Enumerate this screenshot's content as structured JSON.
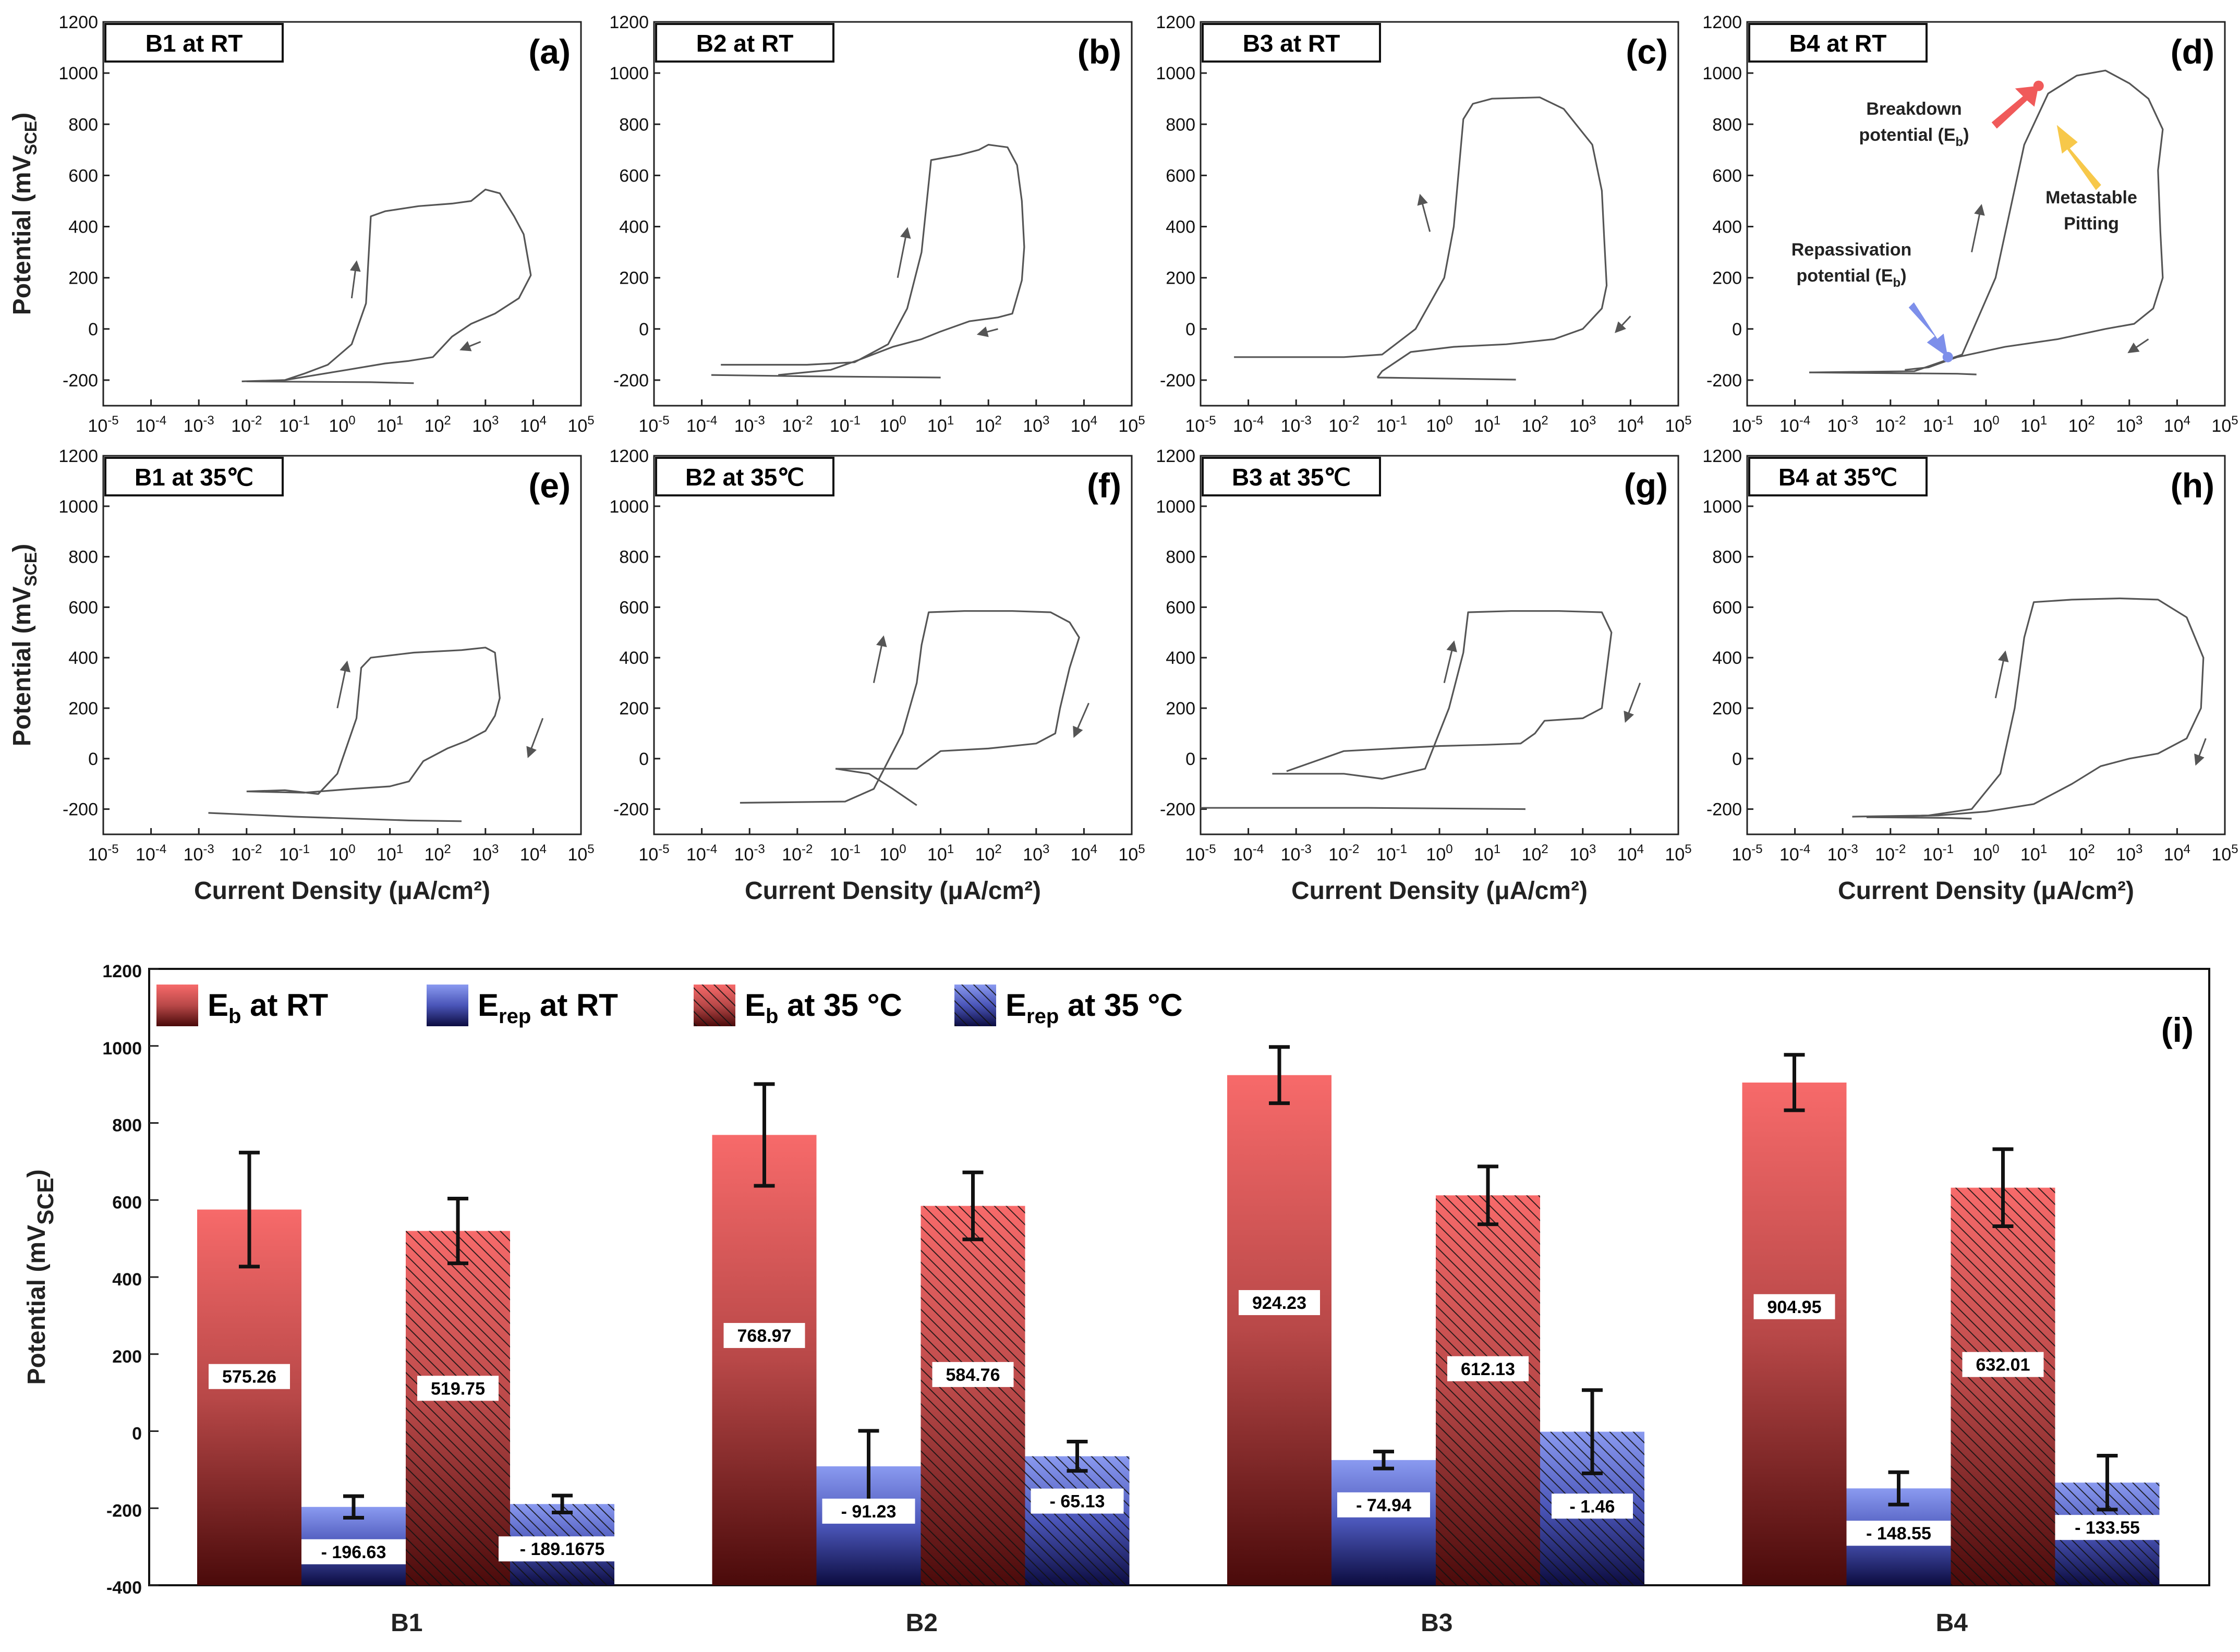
{
  "chart_data": [
    {
      "type": "line",
      "panel": "(a)",
      "title": "B1 at RT",
      "xscale": "log",
      "xlim_exp": [
        -5,
        5
      ],
      "ylim": [
        -300,
        1200
      ],
      "yticks": [
        -200,
        0,
        200,
        400,
        600,
        800,
        1000,
        1200
      ],
      "ylabel": "Potential (mV",
      "ylabel_sub": "SCE",
      "ylabel_close": ")",
      "xlabel": "",
      "forward": [
        [
          -2.1,
          -205
        ],
        [
          -1.2,
          -200
        ],
        [
          -0.8,
          -175
        ],
        [
          -0.3,
          -140
        ],
        [
          0.2,
          -60
        ],
        [
          0.5,
          100
        ],
        [
          0.6,
          440
        ],
        [
          0.9,
          460
        ],
        [
          1.6,
          480
        ],
        [
          2.3,
          490
        ],
        [
          2.7,
          500
        ],
        [
          3.0,
          545
        ],
        [
          3.3,
          530
        ],
        [
          3.6,
          440
        ],
        [
          3.8,
          370
        ],
        [
          3.95,
          210
        ],
        [
          3.7,
          120
        ],
        [
          3.2,
          60
        ],
        [
          2.7,
          20
        ],
        [
          2.3,
          -30
        ],
        [
          1.9,
          -110
        ],
        [
          1.4,
          -125
        ],
        [
          0.9,
          -135
        ],
        [
          0.1,
          -160
        ],
        [
          -1.2,
          -200
        ],
        [
          -2.0,
          -205
        ]
      ],
      "tail": [
        [
          -2.0,
          -205
        ],
        [
          0.6,
          -208
        ],
        [
          1.5,
          -212
        ]
      ],
      "arrows": [
        [
          0.2,
          120,
          0.3,
          260
        ],
        [
          2.9,
          -50,
          2.5,
          -80
        ]
      ]
    },
    {
      "type": "line",
      "panel": "(b)",
      "title": "B2 at RT",
      "xscale": "log",
      "xlim_exp": [
        -5,
        5
      ],
      "ylim": [
        -300,
        1200
      ],
      "yticks": [
        -200,
        0,
        200,
        400,
        600,
        800,
        1000,
        1200
      ],
      "xlabel": "",
      "forward": [
        [
          -3.6,
          -140
        ],
        [
          -1.8,
          -140
        ],
        [
          -0.8,
          -130
        ],
        [
          -0.1,
          -60
        ],
        [
          0.3,
          80
        ],
        [
          0.6,
          300
        ],
        [
          0.8,
          660
        ],
        [
          1.4,
          680
        ],
        [
          1.8,
          700
        ],
        [
          2.0,
          720
        ],
        [
          2.4,
          710
        ],
        [
          2.6,
          640
        ],
        [
          2.7,
          500
        ],
        [
          2.75,
          320
        ],
        [
          2.7,
          190
        ],
        [
          2.5,
          60
        ],
        [
          2.2,
          45
        ],
        [
          1.6,
          30
        ],
        [
          1.0,
          -10
        ],
        [
          0.6,
          -40
        ],
        [
          0.0,
          -70
        ],
        [
          -0.7,
          -120
        ],
        [
          -1.3,
          -160
        ],
        [
          -2.4,
          -180
        ]
      ],
      "tail": [
        [
          -3.8,
          -180
        ],
        [
          -1.8,
          -185
        ],
        [
          1.0,
          -190
        ]
      ],
      "arrows": [
        [
          0.1,
          200,
          0.3,
          390
        ],
        [
          2.2,
          0,
          1.8,
          -20
        ]
      ]
    },
    {
      "type": "line",
      "panel": "(c)",
      "title": "B3 at RT",
      "xscale": "log",
      "xlim_exp": [
        -5,
        5
      ],
      "ylim": [
        -300,
        1200
      ],
      "yticks": [
        -200,
        0,
        200,
        400,
        600,
        800,
        1000,
        1200
      ],
      "xlabel": "",
      "forward": [
        [
          -4.3,
          -110
        ],
        [
          -2.0,
          -110
        ],
        [
          -1.2,
          -100
        ],
        [
          -0.5,
          0
        ],
        [
          0.1,
          200
        ],
        [
          0.3,
          400
        ],
        [
          0.5,
          820
        ],
        [
          0.7,
          880
        ],
        [
          1.1,
          900
        ],
        [
          2.1,
          905
        ],
        [
          2.6,
          860
        ],
        [
          3.2,
          720
        ],
        [
          3.4,
          540
        ],
        [
          3.45,
          350
        ],
        [
          3.5,
          170
        ],
        [
          3.4,
          80
        ],
        [
          3.0,
          0
        ],
        [
          2.4,
          -40
        ],
        [
          1.4,
          -60
        ],
        [
          0.3,
          -70
        ],
        [
          -0.6,
          -90
        ],
        [
          -1.2,
          -165
        ],
        [
          -1.3,
          -190
        ]
      ],
      "tail": [
        [
          -1.3,
          -190
        ],
        [
          0.5,
          -195
        ],
        [
          1.6,
          -198
        ]
      ],
      "arrows": [
        [
          -0.2,
          380,
          -0.4,
          520
        ],
        [
          4.0,
          50,
          3.7,
          -10
        ]
      ]
    },
    {
      "type": "line",
      "panel": "(d)",
      "title": "B4 at RT",
      "xscale": "log",
      "xlim_exp": [
        -5,
        5
      ],
      "ylim": [
        -300,
        1200
      ],
      "yticks": [
        -200,
        0,
        200,
        400,
        600,
        800,
        1000,
        1200
      ],
      "xlabel": "",
      "forward": [
        [
          -3.7,
          -170
        ],
        [
          -1.5,
          -165
        ],
        [
          -0.8,
          -120
        ],
        [
          -0.5,
          -100
        ],
        [
          0.2,
          200
        ],
        [
          0.8,
          720
        ],
        [
          1.3,
          920
        ],
        [
          1.9,
          990
        ],
        [
          2.5,
          1010
        ],
        [
          3.0,
          960
        ],
        [
          3.4,
          900
        ],
        [
          3.7,
          780
        ],
        [
          3.6,
          620
        ],
        [
          3.65,
          380
        ],
        [
          3.7,
          200
        ],
        [
          3.5,
          80
        ],
        [
          3.1,
          20
        ],
        [
          2.5,
          0
        ],
        [
          1.5,
          -40
        ],
        [
          0.4,
          -70
        ],
        [
          -0.6,
          -110
        ],
        [
          -1.2,
          -150
        ],
        [
          -1.7,
          -160
        ]
      ],
      "tail": [
        [
          -3.7,
          -170
        ],
        [
          -0.6,
          -175
        ],
        [
          -0.2,
          -178
        ]
      ],
      "arrows": [
        [
          -0.3,
          300,
          -0.1,
          480
        ],
        [
          3.4,
          -40,
          3.0,
          -90
        ]
      ],
      "annotations": [
        {
          "text": "Breakdown",
          "sub_prefix": "potential (E",
          "sub": "b",
          "sub_suffix": ")"
        },
        {
          "text": "Metastable",
          "line2": "Pitting"
        },
        {
          "text": "Repassivation",
          "sub_prefix": "potential (E",
          "sub": "b",
          "sub_suffix": ")"
        }
      ],
      "markers": [
        {
          "name": "breakdown-point",
          "x": 1.1,
          "y": 950,
          "color": "#f05a5a"
        },
        {
          "name": "repassivation-point",
          "x": -0.8,
          "y": -110,
          "color": "#7d8fea"
        }
      ]
    },
    {
      "type": "line",
      "panel": "(e)",
      "title": "B1 at 35℃",
      "xscale": "log",
      "xlim_exp": [
        -5,
        5
      ],
      "ylim": [
        -300,
        1200
      ],
      "yticks": [
        -200,
        0,
        200,
        400,
        600,
        800,
        1000,
        1200
      ],
      "xlabel": "Current Density (μA/cm²)",
      "forward": [
        [
          -2.0,
          -130
        ],
        [
          -1.2,
          -125
        ],
        [
          -0.5,
          -140
        ],
        [
          -0.1,
          -60
        ],
        [
          0.3,
          160
        ],
        [
          0.4,
          360
        ],
        [
          0.6,
          400
        ],
        [
          1.5,
          420
        ],
        [
          2.5,
          430
        ],
        [
          3.0,
          440
        ],
        [
          3.2,
          420
        ],
        [
          3.3,
          240
        ],
        [
          3.2,
          170
        ],
        [
          3.0,
          110
        ],
        [
          2.6,
          70
        ],
        [
          2.2,
          40
        ],
        [
          1.7,
          -10
        ],
        [
          1.4,
          -90
        ],
        [
          1.0,
          -110
        ],
        [
          0.2,
          -120
        ],
        [
          -0.8,
          -135
        ],
        [
          -2.0,
          -130
        ]
      ],
      "tail": [
        [
          -2.8,
          -215
        ],
        [
          -1.0,
          -230
        ],
        [
          1.4,
          -245
        ],
        [
          2.5,
          -248
        ]
      ],
      "arrows": [
        [
          -0.1,
          200,
          0.1,
          380
        ],
        [
          4.2,
          160,
          3.9,
          10
        ]
      ]
    },
    {
      "type": "line",
      "panel": "(f)",
      "title": "B2 at 35℃",
      "xscale": "log",
      "xlim_exp": [
        -5,
        5
      ],
      "ylim": [
        -300,
        1200
      ],
      "yticks": [
        -200,
        0,
        200,
        400,
        600,
        800,
        1000,
        1200
      ],
      "xlabel": "Current Density (μA/cm²)",
      "forward": [
        [
          -3.2,
          -175
        ],
        [
          -1.0,
          -170
        ],
        [
          -0.4,
          -120
        ],
        [
          0.2,
          100
        ],
        [
          0.5,
          300
        ],
        [
          0.6,
          450
        ],
        [
          0.75,
          580
        ],
        [
          1.5,
          585
        ],
        [
          2.5,
          585
        ],
        [
          3.3,
          580
        ],
        [
          3.7,
          540
        ],
        [
          3.9,
          480
        ],
        [
          3.7,
          360
        ],
        [
          3.5,
          200
        ],
        [
          3.4,
          100
        ],
        [
          3.0,
          60
        ],
        [
          2.0,
          40
        ],
        [
          1.0,
          30
        ],
        [
          0.5,
          -40
        ],
        [
          -1.2,
          -40
        ]
      ],
      "tail": [
        [
          -1.2,
          -40
        ],
        [
          -0.5,
          -60
        ],
        [
          0.0,
          -120
        ],
        [
          0.5,
          -185
        ]
      ],
      "arrows": [
        [
          -0.4,
          300,
          -0.2,
          480
        ],
        [
          4.1,
          220,
          3.8,
          90
        ]
      ]
    },
    {
      "type": "line",
      "panel": "(g)",
      "title": "B3 at 35℃",
      "xscale": "log",
      "xlim_exp": [
        -5,
        5
      ],
      "ylim": [
        -300,
        1200
      ],
      "yticks": [
        -200,
        0,
        200,
        400,
        600,
        800,
        1000,
        1200
      ],
      "xlabel": "Current Density (μA/cm²)",
      "forward": [
        [
          -3.5,
          -60
        ],
        [
          -2.0,
          -60
        ],
        [
          -1.2,
          -80
        ],
        [
          -0.3,
          -40
        ],
        [
          0.2,
          200
        ],
        [
          0.5,
          420
        ],
        [
          0.6,
          580
        ],
        [
          1.5,
          585
        ],
        [
          2.5,
          585
        ],
        [
          3.4,
          580
        ],
        [
          3.6,
          500
        ],
        [
          3.5,
          350
        ],
        [
          3.4,
          200
        ],
        [
          3.0,
          160
        ],
        [
          2.2,
          150
        ],
        [
          2.0,
          100
        ],
        [
          1.7,
          60
        ],
        [
          1.0,
          55
        ],
        [
          0.0,
          50
        ],
        [
          -1.0,
          40
        ],
        [
          -2.0,
          30
        ],
        [
          -3.2,
          -50
        ]
      ],
      "tail": [
        [
          -5.0,
          -195
        ],
        [
          -1.5,
          -195
        ],
        [
          1.8,
          -200
        ]
      ],
      "arrows": [
        [
          0.1,
          300,
          0.3,
          460
        ],
        [
          4.2,
          300,
          3.9,
          150
        ]
      ]
    },
    {
      "type": "line",
      "panel": "(h)",
      "title": "B4 at 35℃",
      "xscale": "log",
      "xlim_exp": [
        -5,
        5
      ],
      "ylim": [
        -300,
        1200
      ],
      "yticks": [
        -200,
        0,
        200,
        400,
        600,
        800,
        1000,
        1200
      ],
      "xlabel": "Current Density (μA/cm²)",
      "forward": [
        [
          -2.8,
          -230
        ],
        [
          -1.2,
          -225
        ],
        [
          -0.3,
          -200
        ],
        [
          0.3,
          -60
        ],
        [
          0.6,
          200
        ],
        [
          0.8,
          480
        ],
        [
          1.0,
          620
        ],
        [
          1.8,
          630
        ],
        [
          2.8,
          635
        ],
        [
          3.6,
          630
        ],
        [
          4.2,
          560
        ],
        [
          4.55,
          400
        ],
        [
          4.5,
          200
        ],
        [
          4.2,
          80
        ],
        [
          3.6,
          20
        ],
        [
          3.0,
          0
        ],
        [
          2.4,
          -30
        ],
        [
          1.8,
          -100
        ],
        [
          1.0,
          -180
        ],
        [
          0.0,
          -210
        ],
        [
          -1.0,
          -225
        ],
        [
          -2.5,
          -232
        ]
      ],
      "tail": [
        [
          -2.5,
          -232
        ],
        [
          -0.8,
          -235
        ],
        [
          -0.3,
          -238
        ]
      ],
      "arrows": [
        [
          0.2,
          240,
          0.4,
          420
        ],
        [
          4.6,
          80,
          4.4,
          -20
        ]
      ]
    },
    {
      "type": "bar",
      "panel": "(i)",
      "categories": [
        "B1",
        "B2",
        "B3",
        "B4"
      ],
      "ylabel": "Potential (mV",
      "ylabel_sub": "SCE",
      "ylabel_close": ")",
      "ylim": [
        -400,
        1200
      ],
      "yticks": [
        -400,
        -200,
        0,
        200,
        400,
        600,
        800,
        1000,
        1200
      ],
      "series": [
        {
          "name": "E_b at RT",
          "legend_main": "E",
          "legend_sub": "b",
          "legend_rest": " at RT",
          "values": [
            575.26,
            768.97,
            924.23,
            904.95
          ],
          "errors": [
            148,
            132,
            73,
            72
          ],
          "labels": [
            "575.26",
            "768.97",
            "924.23",
            "904.95"
          ],
          "color": "#f05a5a",
          "hatched": false
        },
        {
          "name": "E_rep at RT",
          "legend_main": "E",
          "legend_sub": "rep",
          "legend_rest": " at RT",
          "values": [
            -196.63,
            -91.23,
            -74.94,
            -148.55
          ],
          "errors": [
            28,
            92,
            22,
            42
          ],
          "labels": [
            "- 196.63",
            "- 91.23",
            "- 74.94",
            "- 148.55"
          ],
          "color": "#7d8fea",
          "hatched": false
        },
        {
          "name": "E_b at 35 °C",
          "legend_main": "E",
          "legend_sub": "b",
          "legend_rest": " at 35 °C",
          "values": [
            519.75,
            584.76,
            612.13,
            632.01
          ],
          "errors": [
            84,
            87,
            75,
            100
          ],
          "labels": [
            "519.75",
            "584.76",
            "612.13",
            "632.01"
          ],
          "color": "#f05a5a",
          "hatched": true
        },
        {
          "name": "E_rep at 35 °C",
          "legend_main": "E",
          "legend_sub": "rep",
          "legend_rest": " at 35 °C",
          "values": [
            -189.1675,
            -65.13,
            -1.46,
            -133.55
          ],
          "errors": [
            22,
            38,
            108,
            70
          ],
          "labels": [
            "- 189.1675",
            "- 65.13",
            "- 1.46",
            "- 133.55"
          ],
          "color": "#7d8fea",
          "hatched": true
        }
      ]
    }
  ]
}
